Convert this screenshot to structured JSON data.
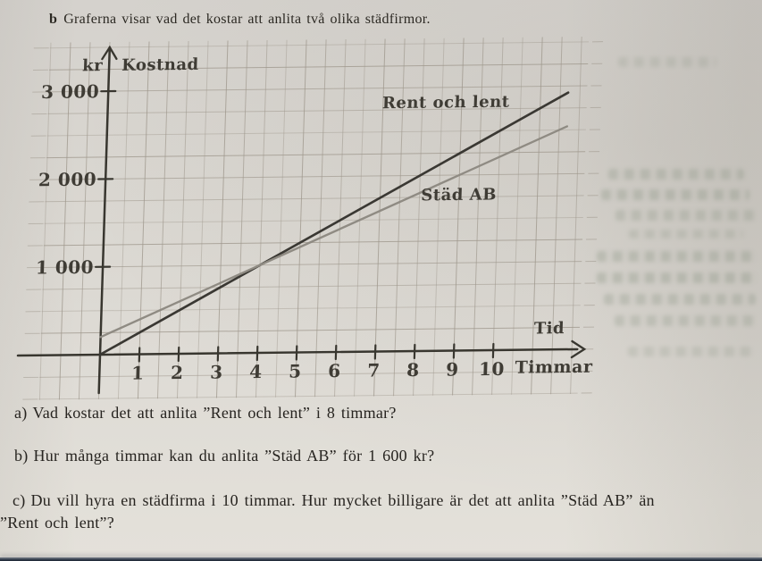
{
  "page": {
    "title_prefix": "b",
    "title": "Graferna visar vad det kostar att anlita två olika städfirmor.",
    "questions": [
      {
        "label": "a)",
        "text": "Vad kostar det att anlita ”Rent och lent” i 8 timmar?"
      },
      {
        "label": "b)",
        "text": "Hur många timmar kan du anlita ”Städ AB” för 1 600 kr?"
      },
      {
        "label": "c)",
        "text": "Du vill hyra en städfirma i 10 timmar. Hur mycket billigare är det att anlita ”Städ AB” än",
        "text_line2": "”Rent och lent”?"
      }
    ]
  },
  "chart_data": {
    "type": "line",
    "title": "",
    "ylabel": "Kostnad",
    "y_axis_unit": "kr",
    "xlabel": "Timmar",
    "x_axis_arrow_label": "Tid",
    "x_ticks": [
      1,
      2,
      3,
      4,
      5,
      6,
      7,
      8,
      9,
      10
    ],
    "y_ticks": [
      {
        "value": 1000,
        "label": "1 000"
      },
      {
        "value": 2000,
        "label": "2 000"
      },
      {
        "value": 3000,
        "label": "3 000"
      }
    ],
    "xlim": [
      0,
      11.7
    ],
    "ylim": [
      0,
      3300
    ],
    "grid": {
      "minor_x_hours": 0.5,
      "minor_y_kr": 250
    },
    "legend_position": "inline-labels",
    "series": [
      {
        "name": "Rent och lent",
        "color": "#3a3833",
        "points": [
          [
            0,
            0
          ],
          [
            11.7,
            2925
          ]
        ],
        "label_at": [
          8.6,
          2770
        ]
      },
      {
        "name": "Städ AB",
        "color": "#8f8b83",
        "points": [
          [
            0,
            200
          ],
          [
            11.7,
            2540
          ]
        ],
        "label_at": [
          9.0,
          1715
        ]
      }
    ]
  }
}
